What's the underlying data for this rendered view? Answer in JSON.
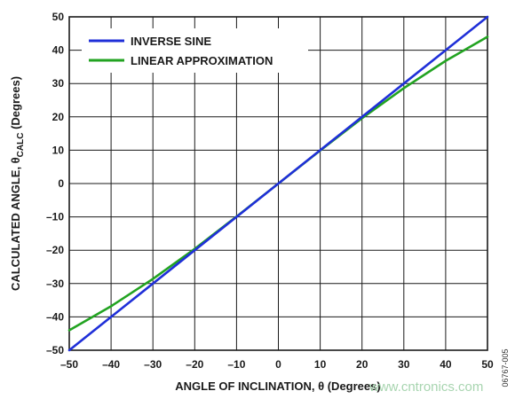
{
  "figure_id": "06767-005",
  "watermark": "www.cntronics.com",
  "colors": {
    "series_1": "#1f2fd8",
    "series_2": "#22a321",
    "grid": "#1a1a1a"
  },
  "chart_data": {
    "type": "line",
    "title": "",
    "xlabel": "ANGLE OF INCLINATION, θ (Degrees)",
    "ylabel_prefix": "CALCULATED ANGLE, θ",
    "ylabel_sub": "CALC",
    "ylabel_suffix": " (Degrees)",
    "xlim": [
      -50,
      50
    ],
    "ylim": [
      -50,
      50
    ],
    "x_ticks": [
      -50,
      -40,
      -30,
      -20,
      -10,
      0,
      10,
      20,
      30,
      40,
      50
    ],
    "y_ticks": [
      -50,
      -40,
      -30,
      -20,
      -10,
      0,
      10,
      20,
      30,
      40,
      50
    ],
    "x_tick_labels": [
      "–50",
      "–40",
      "–30",
      "–20",
      "–10",
      "0",
      "10",
      "20",
      "30",
      "40",
      "50"
    ],
    "y_tick_labels": [
      "–50",
      "–40",
      "–30",
      "–20",
      "–10",
      "0",
      "10",
      "20",
      "30",
      "40",
      "50"
    ],
    "grid": true,
    "legend_position": "top-left",
    "series": [
      {
        "name": "INVERSE SINE",
        "x": [
          -50,
          -40,
          -30,
          -20,
          -10,
          0,
          10,
          20,
          30,
          40,
          50
        ],
        "values": [
          -50,
          -40,
          -30,
          -20,
          -10,
          0,
          10,
          20,
          30,
          40,
          50
        ]
      },
      {
        "name": "LINEAR APPROXIMATION",
        "x": [
          -50,
          -40,
          -30,
          -20,
          -10,
          0,
          10,
          20,
          30,
          40,
          50
        ],
        "values": [
          -44.0,
          -36.8,
          -28.6,
          -19.6,
          -9.9,
          0,
          9.9,
          19.6,
          28.6,
          36.8,
          44.0
        ]
      }
    ]
  }
}
